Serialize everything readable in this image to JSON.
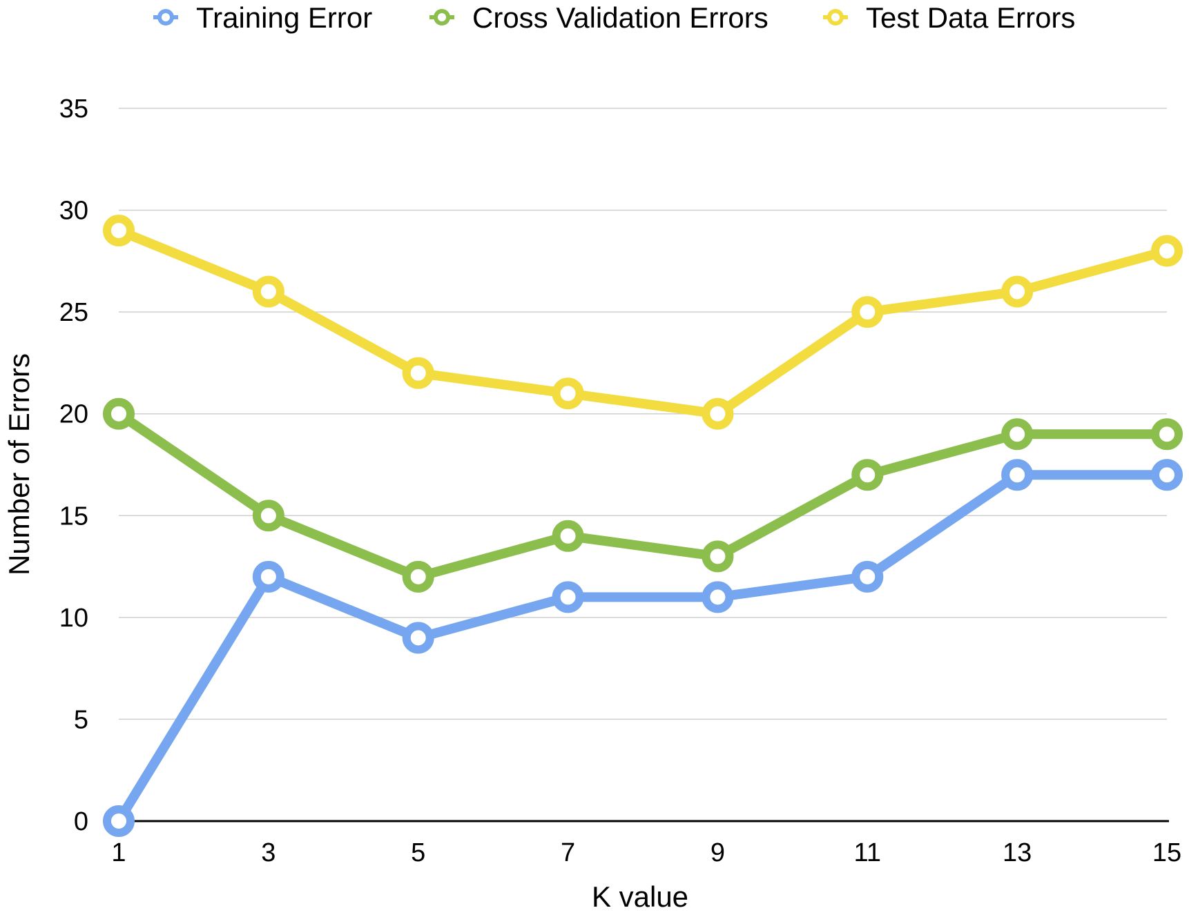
{
  "chart_data": {
    "type": "line",
    "xlabel": "K value",
    "ylabel": "Number of Errors",
    "x": [
      1,
      3,
      5,
      7,
      9,
      11,
      13,
      15
    ],
    "xticks": [
      "1",
      "3",
      "5",
      "7",
      "9",
      "11",
      "13",
      "15"
    ],
    "ylim": [
      0,
      35
    ],
    "yticks": [
      "0",
      "5",
      "10",
      "15",
      "20",
      "25",
      "30",
      "35"
    ],
    "grid": true,
    "legend_position": "top",
    "series": [
      {
        "name": "Training Error",
        "color": "#75a6ef",
        "values": [
          0,
          12,
          9,
          11,
          11,
          12,
          17,
          17
        ]
      },
      {
        "name": "Cross Validation Errors",
        "color": "#8bbe4d",
        "values": [
          20,
          15,
          12,
          14,
          13,
          17,
          19,
          19
        ]
      },
      {
        "name": "Test Data Errors",
        "color": "#f2dc3f",
        "values": [
          29,
          26,
          22,
          21,
          20,
          25,
          26,
          28
        ]
      }
    ]
  }
}
